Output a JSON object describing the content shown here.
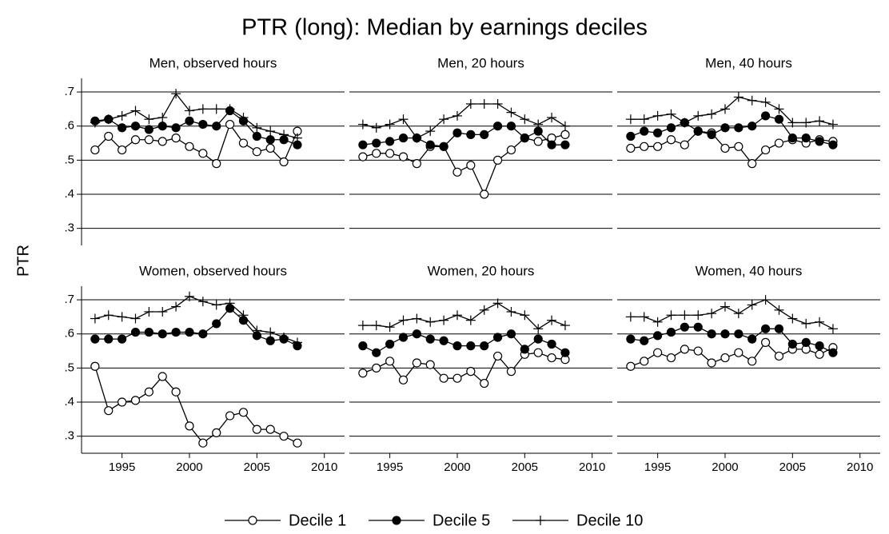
{
  "title": "PTR (long): Median by earnings deciles",
  "y_label": "PTR",
  "chart_data": [
    {
      "type": "line",
      "title": "Men, observed hours",
      "x": [
        1993,
        1994,
        1995,
        1996,
        1997,
        1998,
        1999,
        2000,
        2001,
        2002,
        2003,
        2004,
        2005,
        2006,
        2007,
        2008
      ],
      "xlim": [
        1992,
        2011.5
      ],
      "ylim": [
        0.25,
        0.74
      ],
      "yticks": [
        {
          "value": 0.3,
          "label": ".3"
        },
        {
          "value": 0.4,
          "label": ".4"
        },
        {
          "value": 0.5,
          "label": ".5"
        },
        {
          "value": 0.6,
          "label": ".6"
        },
        {
          "value": 0.7,
          "label": ".7"
        }
      ],
      "grid": true,
      "series": [
        {
          "name": "Decile 1",
          "color": "#000000",
          "marker": "open-circle",
          "values": [
            0.53,
            0.57,
            0.53,
            0.56,
            0.56,
            0.555,
            0.565,
            0.54,
            0.52,
            0.49,
            0.605,
            0.55,
            0.525,
            0.535,
            0.495,
            0.585
          ]
        },
        {
          "name": "Decile 5",
          "color": "#000000",
          "marker": "filled-circle",
          "values": [
            0.615,
            0.62,
            0.595,
            0.6,
            0.59,
            0.6,
            0.595,
            0.615,
            0.605,
            0.6,
            0.645,
            0.615,
            0.57,
            0.56,
            0.56,
            0.545
          ]
        },
        {
          "name": "Decile 10",
          "color": "#000000",
          "marker": "plus",
          "values": [
            0.61,
            0.62,
            0.63,
            0.645,
            0.62,
            0.625,
            0.695,
            0.645,
            0.65,
            0.65,
            0.65,
            0.625,
            0.595,
            0.585,
            0.575,
            0.565
          ]
        }
      ]
    },
    {
      "type": "line",
      "title": "Men, 20 hours",
      "x": [
        1993,
        1994,
        1995,
        1996,
        1997,
        1998,
        1999,
        2000,
        2001,
        2002,
        2003,
        2004,
        2005,
        2006,
        2007,
        2008
      ],
      "xlim": [
        1992,
        2011.5
      ],
      "ylim": [
        0.25,
        0.74
      ],
      "yticks": [
        0.3,
        0.4,
        0.5,
        0.6,
        0.7
      ],
      "grid": true,
      "series": [
        {
          "name": "Decile 1",
          "color": "#000000",
          "marker": "open-circle",
          "values": [
            0.51,
            0.52,
            0.52,
            0.51,
            0.49,
            0.54,
            0.54,
            0.465,
            0.485,
            0.4,
            0.5,
            0.53,
            0.565,
            0.555,
            0.565,
            0.575
          ]
        },
        {
          "name": "Decile 5",
          "color": "#000000",
          "marker": "filled-circle",
          "values": [
            0.545,
            0.55,
            0.555,
            0.565,
            0.565,
            0.545,
            0.54,
            0.58,
            0.575,
            0.575,
            0.6,
            0.6,
            0.565,
            0.585,
            0.545,
            0.545
          ]
        },
        {
          "name": "Decile 10",
          "color": "#000000",
          "marker": "plus",
          "values": [
            0.605,
            0.595,
            0.605,
            0.62,
            0.565,
            0.585,
            0.62,
            0.63,
            0.665,
            0.665,
            0.665,
            0.64,
            0.62,
            0.605,
            0.625,
            0.6
          ]
        }
      ]
    },
    {
      "type": "line",
      "title": "Men, 40 hours",
      "x": [
        1993,
        1994,
        1995,
        1996,
        1997,
        1998,
        1999,
        2000,
        2001,
        2002,
        2003,
        2004,
        2005,
        2006,
        2007,
        2008
      ],
      "xlim": [
        1992,
        2011.5
      ],
      "ylim": [
        0.25,
        0.74
      ],
      "yticks": [
        0.3,
        0.4,
        0.5,
        0.6,
        0.7
      ],
      "grid": true,
      "series": [
        {
          "name": "Decile 1",
          "color": "#000000",
          "marker": "open-circle",
          "values": [
            0.535,
            0.54,
            0.54,
            0.56,
            0.545,
            0.585,
            0.58,
            0.535,
            0.54,
            0.49,
            0.53,
            0.55,
            0.56,
            0.55,
            0.56,
            0.555
          ]
        },
        {
          "name": "Decile 5",
          "color": "#000000",
          "marker": "filled-circle",
          "values": [
            0.57,
            0.585,
            0.58,
            0.595,
            0.61,
            0.585,
            0.575,
            0.595,
            0.595,
            0.6,
            0.63,
            0.62,
            0.565,
            0.565,
            0.555,
            0.545
          ]
        },
        {
          "name": "Decile 10",
          "color": "#000000",
          "marker": "plus",
          "values": [
            0.62,
            0.62,
            0.63,
            0.635,
            0.61,
            0.63,
            0.635,
            0.65,
            0.685,
            0.675,
            0.67,
            0.65,
            0.61,
            0.61,
            0.615,
            0.605
          ]
        }
      ]
    },
    {
      "type": "line",
      "title": "Women, observed hours",
      "x": [
        1993,
        1994,
        1995,
        1996,
        1997,
        1998,
        1999,
        2000,
        2001,
        2002,
        2003,
        2004,
        2005,
        2006,
        2007,
        2008
      ],
      "xlim": [
        1992,
        2011.5
      ],
      "ylim": [
        0.25,
        0.74
      ],
      "xticks": [
        1995,
        2000,
        2005,
        2010
      ],
      "yticks": [
        {
          "value": 0.3,
          "label": ".3"
        },
        {
          "value": 0.4,
          "label": ".4"
        },
        {
          "value": 0.5,
          "label": ".5"
        },
        {
          "value": 0.6,
          "label": ".6"
        },
        {
          "value": 0.7,
          "label": ".7"
        }
      ],
      "grid": true,
      "series": [
        {
          "name": "Decile 1",
          "color": "#000000",
          "marker": "open-circle",
          "values": [
            0.505,
            0.375,
            0.4,
            0.405,
            0.43,
            0.475,
            0.43,
            0.33,
            0.28,
            0.31,
            0.36,
            0.37,
            0.32,
            0.32,
            0.3,
            0.28
          ]
        },
        {
          "name": "Decile 5",
          "color": "#000000",
          "marker": "filled-circle",
          "values": [
            0.585,
            0.585,
            0.585,
            0.605,
            0.605,
            0.6,
            0.605,
            0.605,
            0.6,
            0.63,
            0.675,
            0.64,
            0.595,
            0.58,
            0.585,
            0.565
          ]
        },
        {
          "name": "Decile 10",
          "color": "#000000",
          "marker": "plus",
          "values": [
            0.645,
            0.655,
            0.65,
            0.645,
            0.665,
            0.665,
            0.68,
            0.71,
            0.695,
            0.685,
            0.69,
            0.655,
            0.61,
            0.605,
            0.59,
            0.575
          ]
        }
      ]
    },
    {
      "type": "line",
      "title": "Women, 20 hours",
      "x": [
        1993,
        1994,
        1995,
        1996,
        1997,
        1998,
        1999,
        2000,
        2001,
        2002,
        2003,
        2004,
        2005,
        2006,
        2007,
        2008
      ],
      "xlim": [
        1992,
        2011.5
      ],
      "ylim": [
        0.25,
        0.74
      ],
      "xticks": [
        1995,
        2000,
        2005,
        2010
      ],
      "yticks": [
        0.3,
        0.4,
        0.5,
        0.6,
        0.7
      ],
      "grid": true,
      "series": [
        {
          "name": "Decile 1",
          "color": "#000000",
          "marker": "open-circle",
          "values": [
            0.485,
            0.5,
            0.52,
            0.465,
            0.515,
            0.51,
            0.47,
            0.47,
            0.49,
            0.455,
            0.535,
            0.49,
            0.54,
            0.545,
            0.53,
            0.525
          ]
        },
        {
          "name": "Decile 5",
          "color": "#000000",
          "marker": "filled-circle",
          "values": [
            0.565,
            0.545,
            0.57,
            0.59,
            0.6,
            0.585,
            0.58,
            0.565,
            0.565,
            0.565,
            0.59,
            0.6,
            0.555,
            0.585,
            0.57,
            0.545
          ]
        },
        {
          "name": "Decile 10",
          "color": "#000000",
          "marker": "plus",
          "values": [
            0.625,
            0.625,
            0.62,
            0.64,
            0.645,
            0.635,
            0.64,
            0.655,
            0.64,
            0.67,
            0.69,
            0.665,
            0.655,
            0.615,
            0.64,
            0.625
          ]
        }
      ]
    },
    {
      "type": "line",
      "title": "Women, 40 hours",
      "x": [
        1993,
        1994,
        1995,
        1996,
        1997,
        1998,
        1999,
        2000,
        2001,
        2002,
        2003,
        2004,
        2005,
        2006,
        2007,
        2008
      ],
      "xlim": [
        1992,
        2011.5
      ],
      "ylim": [
        0.25,
        0.74
      ],
      "xticks": [
        1995,
        2000,
        2005,
        2010
      ],
      "yticks": [
        0.3,
        0.4,
        0.5,
        0.6,
        0.7
      ],
      "grid": true,
      "series": [
        {
          "name": "Decile 1",
          "color": "#000000",
          "marker": "open-circle",
          "values": [
            0.505,
            0.52,
            0.545,
            0.53,
            0.555,
            0.55,
            0.515,
            0.53,
            0.545,
            0.52,
            0.575,
            0.535,
            0.555,
            0.555,
            0.54,
            0.56
          ]
        },
        {
          "name": "Decile 5",
          "color": "#000000",
          "marker": "filled-circle",
          "values": [
            0.585,
            0.58,
            0.595,
            0.605,
            0.62,
            0.62,
            0.6,
            0.6,
            0.6,
            0.585,
            0.615,
            0.615,
            0.57,
            0.575,
            0.565,
            0.545
          ]
        },
        {
          "name": "Decile 10",
          "color": "#000000",
          "marker": "plus",
          "values": [
            0.65,
            0.65,
            0.635,
            0.655,
            0.655,
            0.655,
            0.66,
            0.68,
            0.66,
            0.685,
            0.7,
            0.67,
            0.645,
            0.63,
            0.635,
            0.615
          ]
        }
      ]
    }
  ]
}
